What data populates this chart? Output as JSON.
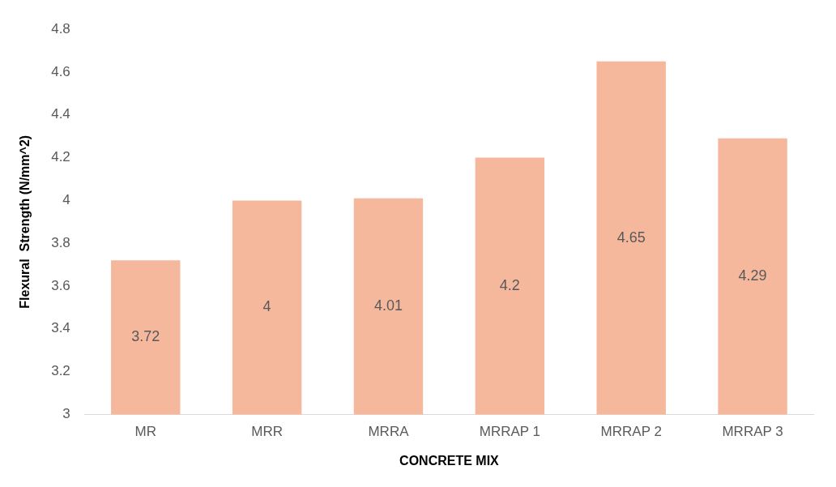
{
  "chart_data": {
    "type": "bar",
    "xlabel": "CONCRETE MIX",
    "ylabel": "Flexural  Strength (N/mm^2)",
    "categories": [
      "MR",
      "MRR",
      "MRRA",
      "MRRAP 1",
      "MRRAP 2",
      "MRRAP 3"
    ],
    "values": [
      3.72,
      4,
      4.01,
      4.2,
      4.65,
      4.29
    ],
    "color": "#f5b89d",
    "ylim": [
      3,
      4.8
    ],
    "yticks": [
      3,
      3.2,
      3.4,
      3.6,
      3.8,
      4,
      4.2,
      4.4,
      4.6,
      4.8
    ],
    "grid": false,
    "legend": false,
    "data_labels": true
  }
}
